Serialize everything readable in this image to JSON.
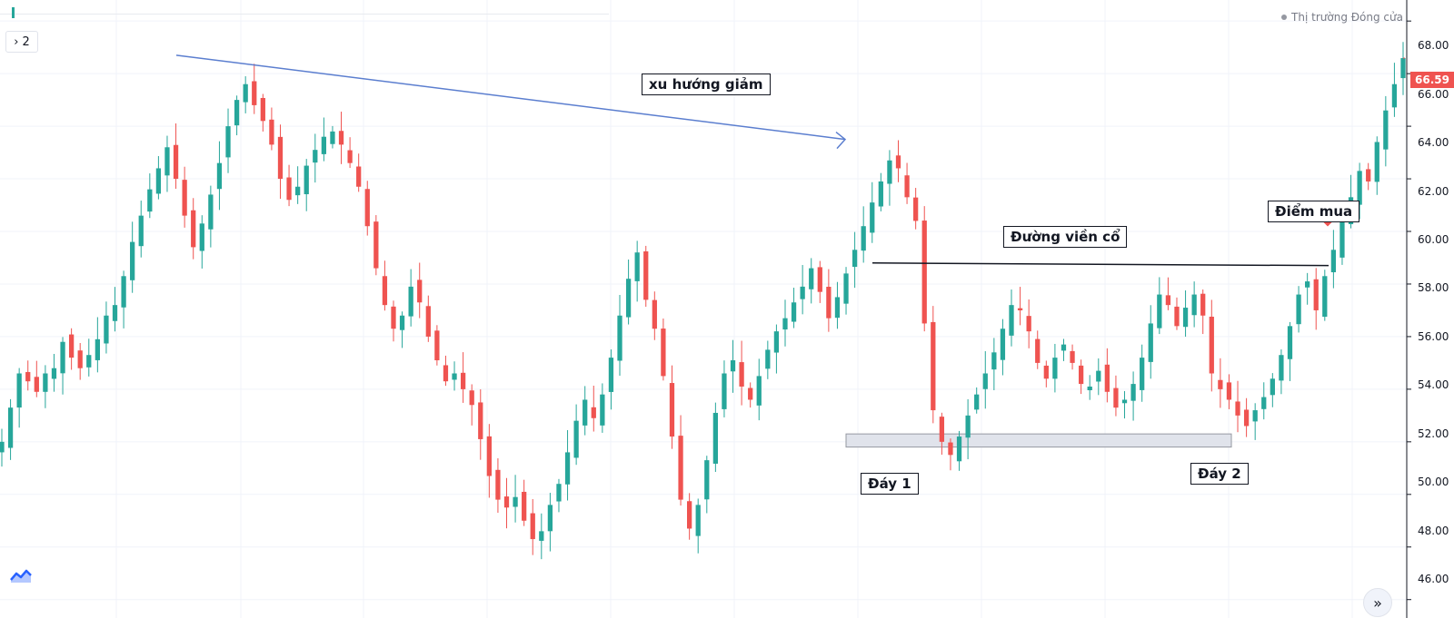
{
  "legend": {
    "button_label": "› 2"
  },
  "status": {
    "text": "Thị trường Đóng cửa"
  },
  "price_axis": {
    "labels": [
      "68.00",
      "66.00",
      "64.00",
      "62.00",
      "60.00",
      "58.00",
      "56.00",
      "54.00",
      "52.00",
      "50.00",
      "48.00",
      "46.00"
    ],
    "last_price": "66.59"
  },
  "annotations": {
    "downtrend": "xu hướng giảm",
    "neckline": "Đường viền cổ",
    "buy_point": "Điểm mua",
    "bottom1": "Đáy 1",
    "bottom2": "Đáy 2"
  },
  "icons": {
    "logo": "tradingview-logo-icon",
    "scroll": "scroll-to-realtime-icon",
    "buy_arrow": "down-arrow-icon"
  },
  "colors": {
    "up": "#26a69a",
    "down": "#ef5350",
    "trendline": "#5b7ecf",
    "neckline": "#131722",
    "support_box": "#e0e3eb"
  },
  "chart_data": {
    "type": "candlestick",
    "ylim": [
      45.3,
      68.8
    ],
    "grid": true,
    "last_price": 66.59,
    "candles_close": [
      52.0,
      53.3,
      54.6,
      54.3,
      53.9,
      54.6,
      54.8,
      55.8,
      55.2,
      54.8,
      55.3,
      55.9,
      56.8,
      57.2,
      58.3,
      59.6,
      60.6,
      61.6,
      62.4,
      63.2,
      62.0,
      60.6,
      59.4,
      60.3,
      61.4,
      62.6,
      64.0,
      65.0,
      65.6,
      64.8,
      64.2,
      63.3,
      62.0,
      61.2,
      61.7,
      62.5,
      63.1,
      63.6,
      63.8,
      63.3,
      62.6,
      61.7,
      60.2,
      58.6,
      57.2,
      56.3,
      56.8,
      57.9,
      57.3,
      56.0,
      55.1,
      54.3,
      54.6,
      54.0,
      53.4,
      52.1,
      50.7,
      49.8,
      49.5,
      49.9,
      49.0,
      48.3,
      48.6,
      49.6,
      50.4,
      51.6,
      52.8,
      53.6,
      52.9,
      53.8,
      55.2,
      56.8,
      58.2,
      59.2,
      57.4,
      56.3,
      54.5,
      52.2,
      49.8,
      48.7,
      49.6,
      51.3,
      53.1,
      54.6,
      55.1,
      54.1,
      53.6,
      54.5,
      55.5,
      56.2,
      56.7,
      57.3,
      57.9,
      58.6,
      57.7,
      56.7,
      57.5,
      58.4,
      59.3,
      60.2,
      61.1,
      61.9,
      62.7,
      62.4,
      61.3,
      60.4,
      56.5,
      53.2,
      52.0,
      51.5,
      52.2,
      53.0,
      53.8,
      54.6,
      55.4,
      56.3,
      57.2,
      57.0,
      56.2,
      55.0,
      54.4,
      55.2,
      55.7,
      55.0,
      54.2,
      54.1,
      54.7,
      53.9,
      53.3,
      53.6,
      54.2,
      55.2,
      56.5,
      57.6,
      57.2,
      56.4,
      57.1,
      57.6,
      56.8,
      54.6,
      54.0,
      53.6,
      53.0,
      52.6,
      53.2,
      53.7,
      54.4,
      55.3,
      56.4,
      57.6,
      58.1,
      57.0,
      58.3,
      59.3,
      60.4,
      61.3,
      62.3,
      61.9,
      63.4,
      64.6,
      65.6,
      66.59
    ],
    "downtrend_line": {
      "from": 66.7,
      "to": 63.5
    },
    "neckline": {
      "from": 58.8,
      "to": 58.7
    },
    "support_zone": [
      51.8,
      52.3
    ]
  }
}
